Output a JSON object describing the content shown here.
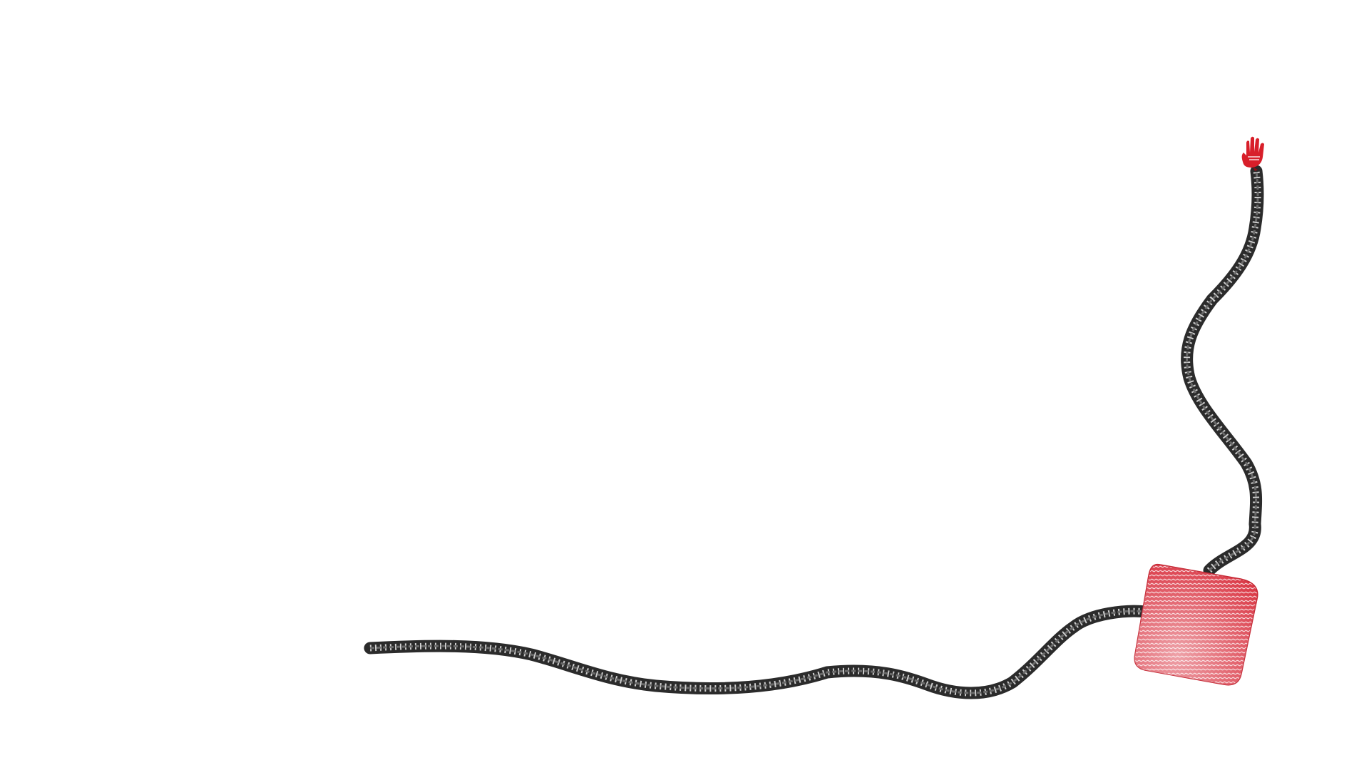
{
  "scene": {
    "background_color": "#ffffff",
    "rope": {
      "color_dark": "#2b2b2b",
      "color_mid": "#6a6a6a",
      "color_light": "#cfcfcf"
    },
    "block": {
      "color": "#d9303e",
      "stripe_color": "#f4c9cd",
      "rotation_deg": 8
    },
    "hand": {
      "icon": "red-hand-icon",
      "color": "#d81f2a"
    }
  }
}
